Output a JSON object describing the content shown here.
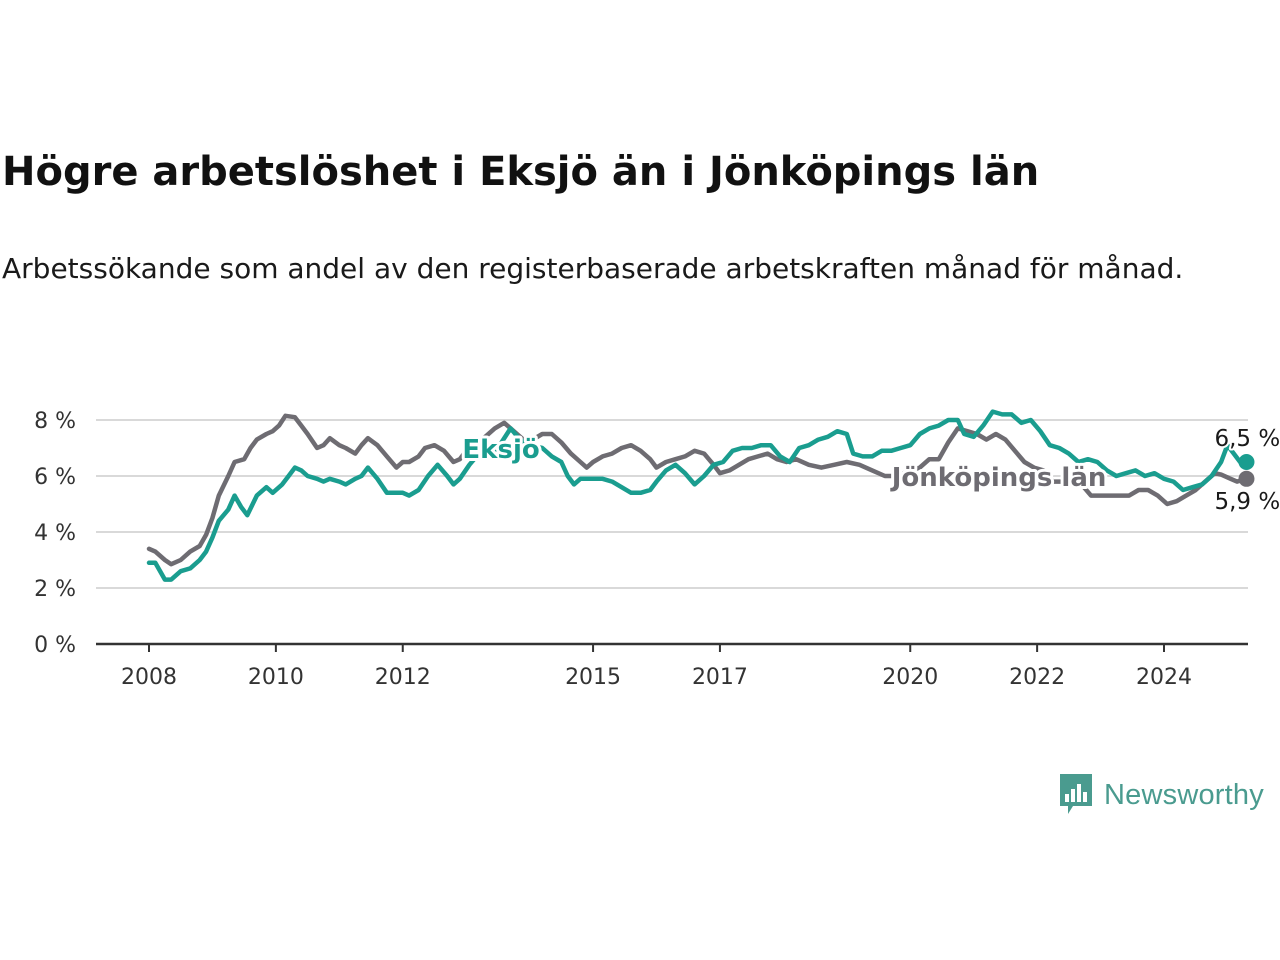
{
  "title": "Högre arbetslöshet i Eksjö än i Jönköpings län",
  "subtitle": "Arbetssökande som andel av den registerbaserade arbetskraften månad för månad.",
  "logo": {
    "text": "Newsworthy",
    "icon": "chart-speech-bubble-icon",
    "color": "#4a9b8f"
  },
  "chart_data": {
    "type": "line",
    "title": "Högre arbetslöshet i Eksjö än i Jönköpings län",
    "xlabel": "",
    "ylabel": "",
    "ylim": [
      0,
      8
    ],
    "xlim": [
      2008,
      2025.5
    ],
    "grid": true,
    "y_ticks": [
      {
        "value": 0,
        "label": "0 %"
      },
      {
        "value": 2,
        "label": "2 %"
      },
      {
        "value": 4,
        "label": "4 %"
      },
      {
        "value": 6,
        "label": "6 %"
      },
      {
        "value": 8,
        "label": "8 %"
      }
    ],
    "x_ticks": [
      {
        "value": 2008,
        "label": "2008"
      },
      {
        "value": 2010,
        "label": "2010"
      },
      {
        "value": 2012,
        "label": "2012"
      },
      {
        "value": 2015,
        "label": "2015"
      },
      {
        "value": 2017,
        "label": "2017"
      },
      {
        "value": 2020,
        "label": "2020"
      },
      {
        "value": 2022,
        "label": "2022"
      },
      {
        "value": 2024,
        "label": "2024"
      }
    ],
    "series": [
      {
        "name": "Jönköpings län",
        "color": "#6e6c72",
        "label": "Jönköpings län",
        "end_label": "5,9 %",
        "points": [
          [
            2008.0,
            3.4
          ],
          [
            2008.1,
            3.3
          ],
          [
            2008.25,
            3.0
          ],
          [
            2008.35,
            2.85
          ],
          [
            2008.5,
            3.0
          ],
          [
            2008.65,
            3.3
          ],
          [
            2008.8,
            3.5
          ],
          [
            2008.9,
            3.9
          ],
          [
            2009.0,
            4.5
          ],
          [
            2009.1,
            5.3
          ],
          [
            2009.25,
            6.0
          ],
          [
            2009.35,
            6.5
          ],
          [
            2009.5,
            6.6
          ],
          [
            2009.6,
            7.0
          ],
          [
            2009.7,
            7.3
          ],
          [
            2009.85,
            7.5
          ],
          [
            2009.95,
            7.6
          ],
          [
            2010.05,
            7.8
          ],
          [
            2010.15,
            8.15
          ],
          [
            2010.3,
            8.1
          ],
          [
            2010.4,
            7.8
          ],
          [
            2010.5,
            7.5
          ],
          [
            2010.65,
            7.0
          ],
          [
            2010.75,
            7.1
          ],
          [
            2010.85,
            7.35
          ],
          [
            2011.0,
            7.1
          ],
          [
            2011.1,
            7.0
          ],
          [
            2011.25,
            6.8
          ],
          [
            2011.35,
            7.1
          ],
          [
            2011.45,
            7.35
          ],
          [
            2011.6,
            7.1
          ],
          [
            2011.75,
            6.7
          ],
          [
            2011.9,
            6.3
          ],
          [
            2012.0,
            6.5
          ],
          [
            2012.1,
            6.5
          ],
          [
            2012.25,
            6.7
          ],
          [
            2012.35,
            7.0
          ],
          [
            2012.5,
            7.1
          ],
          [
            2012.65,
            6.9
          ],
          [
            2012.8,
            6.5
          ],
          [
            2012.9,
            6.6
          ],
          [
            2013.0,
            6.9
          ],
          [
            2013.15,
            7.2
          ],
          [
            2013.3,
            7.4
          ],
          [
            2013.45,
            7.7
          ],
          [
            2013.6,
            7.9
          ],
          [
            2013.75,
            7.6
          ],
          [
            2013.9,
            7.3
          ],
          [
            2014.05,
            7.3
          ],
          [
            2014.2,
            7.5
          ],
          [
            2014.35,
            7.5
          ],
          [
            2014.5,
            7.2
          ],
          [
            2014.65,
            6.8
          ],
          [
            2014.8,
            6.5
          ],
          [
            2014.9,
            6.3
          ],
          [
            2015.0,
            6.5
          ],
          [
            2015.15,
            6.7
          ],
          [
            2015.3,
            6.8
          ],
          [
            2015.45,
            7.0
          ],
          [
            2015.6,
            7.1
          ],
          [
            2015.75,
            6.9
          ],
          [
            2015.9,
            6.6
          ],
          [
            2016.0,
            6.3
          ],
          [
            2016.15,
            6.5
          ],
          [
            2016.3,
            6.6
          ],
          [
            2016.45,
            6.7
          ],
          [
            2016.6,
            6.9
          ],
          [
            2016.75,
            6.8
          ],
          [
            2016.9,
            6.4
          ],
          [
            2017.0,
            6.1
          ],
          [
            2017.15,
            6.2
          ],
          [
            2017.3,
            6.4
          ],
          [
            2017.45,
            6.6
          ],
          [
            2017.6,
            6.7
          ],
          [
            2017.75,
            6.8
          ],
          [
            2017.9,
            6.6
          ],
          [
            2018.05,
            6.5
          ],
          [
            2018.2,
            6.6
          ],
          [
            2018.4,
            6.4
          ],
          [
            2018.6,
            6.3
          ],
          [
            2018.8,
            6.4
          ],
          [
            2019.0,
            6.5
          ],
          [
            2019.2,
            6.4
          ],
          [
            2019.4,
            6.2
          ],
          [
            2019.6,
            6.0
          ],
          [
            2019.8,
            6.0
          ],
          [
            2020.0,
            6.2
          ],
          [
            2020.15,
            6.3
          ],
          [
            2020.3,
            6.6
          ],
          [
            2020.45,
            6.6
          ],
          [
            2020.6,
            7.2
          ],
          [
            2020.75,
            7.7
          ],
          [
            2020.9,
            7.6
          ],
          [
            2021.05,
            7.5
          ],
          [
            2021.2,
            7.3
          ],
          [
            2021.35,
            7.5
          ],
          [
            2021.5,
            7.3
          ],
          [
            2021.65,
            6.9
          ],
          [
            2021.8,
            6.5
          ],
          [
            2021.95,
            6.3
          ],
          [
            2022.1,
            6.2
          ],
          [
            2022.25,
            5.8
          ],
          [
            2022.4,
            5.8
          ],
          [
            2022.55,
            5.8
          ],
          [
            2022.7,
            5.7
          ],
          [
            2022.85,
            5.3
          ],
          [
            2023.0,
            5.3
          ],
          [
            2023.15,
            5.3
          ],
          [
            2023.3,
            5.3
          ],
          [
            2023.45,
            5.3
          ],
          [
            2023.6,
            5.5
          ],
          [
            2023.75,
            5.5
          ],
          [
            2023.9,
            5.3
          ],
          [
            2024.05,
            5.0
          ],
          [
            2024.2,
            5.1
          ],
          [
            2024.35,
            5.3
          ],
          [
            2024.5,
            5.5
          ],
          [
            2024.65,
            5.8
          ],
          [
            2024.8,
            6.1
          ],
          [
            2024.9,
            6.05
          ],
          [
            2025.05,
            5.9
          ],
          [
            2025.15,
            5.8
          ],
          [
            2025.3,
            5.9
          ]
        ]
      },
      {
        "name": "Eksjö",
        "color": "#1a9d8f",
        "label": "Eksjö",
        "end_label": "6,5 %",
        "points": [
          [
            2008.0,
            2.9
          ],
          [
            2008.1,
            2.9
          ],
          [
            2008.25,
            2.3
          ],
          [
            2008.35,
            2.3
          ],
          [
            2008.5,
            2.6
          ],
          [
            2008.65,
            2.7
          ],
          [
            2008.8,
            3.0
          ],
          [
            2008.9,
            3.3
          ],
          [
            2009.0,
            3.8
          ],
          [
            2009.1,
            4.4
          ],
          [
            2009.25,
            4.8
          ],
          [
            2009.35,
            5.3
          ],
          [
            2009.45,
            4.9
          ],
          [
            2009.55,
            4.6
          ],
          [
            2009.7,
            5.3
          ],
          [
            2009.85,
            5.6
          ],
          [
            2009.95,
            5.4
          ],
          [
            2010.1,
            5.7
          ],
          [
            2010.2,
            6.0
          ],
          [
            2010.3,
            6.3
          ],
          [
            2010.4,
            6.2
          ],
          [
            2010.5,
            6.0
          ],
          [
            2010.65,
            5.9
          ],
          [
            2010.75,
            5.8
          ],
          [
            2010.85,
            5.9
          ],
          [
            2011.0,
            5.8
          ],
          [
            2011.1,
            5.7
          ],
          [
            2011.25,
            5.9
          ],
          [
            2011.35,
            6.0
          ],
          [
            2011.45,
            6.3
          ],
          [
            2011.6,
            5.9
          ],
          [
            2011.75,
            5.4
          ],
          [
            2011.9,
            5.4
          ],
          [
            2012.0,
            5.4
          ],
          [
            2012.1,
            5.3
          ],
          [
            2012.25,
            5.5
          ],
          [
            2012.4,
            6.0
          ],
          [
            2012.55,
            6.4
          ],
          [
            2012.7,
            6.0
          ],
          [
            2012.8,
            5.7
          ],
          [
            2012.9,
            5.9
          ],
          [
            2013.05,
            6.4
          ],
          [
            2013.2,
            6.8
          ],
          [
            2013.35,
            6.8
          ],
          [
            2013.5,
            7.0
          ],
          [
            2013.7,
            7.7
          ],
          [
            2013.85,
            7.3
          ],
          [
            2014.0,
            7.1
          ],
          [
            2014.2,
            7.0
          ],
          [
            2014.35,
            6.7
          ],
          [
            2014.5,
            6.5
          ],
          [
            2014.6,
            6.0
          ],
          [
            2014.7,
            5.7
          ],
          [
            2014.8,
            5.9
          ],
          [
            2015.0,
            5.9
          ],
          [
            2015.15,
            5.9
          ],
          [
            2015.3,
            5.8
          ],
          [
            2015.45,
            5.6
          ],
          [
            2015.6,
            5.4
          ],
          [
            2015.75,
            5.4
          ],
          [
            2015.9,
            5.5
          ],
          [
            2016.0,
            5.8
          ],
          [
            2016.15,
            6.2
          ],
          [
            2016.3,
            6.4
          ],
          [
            2016.45,
            6.1
          ],
          [
            2016.6,
            5.7
          ],
          [
            2016.75,
            6.0
          ],
          [
            2016.9,
            6.4
          ],
          [
            2017.05,
            6.5
          ],
          [
            2017.2,
            6.9
          ],
          [
            2017.35,
            7.0
          ],
          [
            2017.5,
            7.0
          ],
          [
            2017.65,
            7.1
          ],
          [
            2017.8,
            7.1
          ],
          [
            2017.95,
            6.7
          ],
          [
            2018.1,
            6.5
          ],
          [
            2018.25,
            7.0
          ],
          [
            2018.4,
            7.1
          ],
          [
            2018.55,
            7.3
          ],
          [
            2018.7,
            7.4
          ],
          [
            2018.85,
            7.6
          ],
          [
            2019.0,
            7.5
          ],
          [
            2019.1,
            6.8
          ],
          [
            2019.25,
            6.7
          ],
          [
            2019.4,
            6.7
          ],
          [
            2019.55,
            6.9
          ],
          [
            2019.7,
            6.9
          ],
          [
            2019.85,
            7.0
          ],
          [
            2020.0,
            7.1
          ],
          [
            2020.15,
            7.5
          ],
          [
            2020.3,
            7.7
          ],
          [
            2020.45,
            7.8
          ],
          [
            2020.6,
            8.0
          ],
          [
            2020.75,
            8.0
          ],
          [
            2020.85,
            7.5
          ],
          [
            2021.0,
            7.4
          ],
          [
            2021.15,
            7.8
          ],
          [
            2021.3,
            8.3
          ],
          [
            2021.45,
            8.2
          ],
          [
            2021.6,
            8.2
          ],
          [
            2021.75,
            7.9
          ],
          [
            2021.9,
            8.0
          ],
          [
            2022.05,
            7.6
          ],
          [
            2022.2,
            7.1
          ],
          [
            2022.35,
            7.0
          ],
          [
            2022.5,
            6.8
          ],
          [
            2022.65,
            6.5
          ],
          [
            2022.8,
            6.6
          ],
          [
            2022.95,
            6.5
          ],
          [
            2023.1,
            6.2
          ],
          [
            2023.25,
            6.0
          ],
          [
            2023.4,
            6.1
          ],
          [
            2023.55,
            6.2
          ],
          [
            2023.7,
            6.0
          ],
          [
            2023.85,
            6.1
          ],
          [
            2024.0,
            5.9
          ],
          [
            2024.15,
            5.8
          ],
          [
            2024.3,
            5.5
          ],
          [
            2024.45,
            5.6
          ],
          [
            2024.6,
            5.7
          ],
          [
            2024.75,
            6.0
          ],
          [
            2024.9,
            6.5
          ],
          [
            2025.0,
            7.1
          ],
          [
            2025.1,
            6.8
          ],
          [
            2025.2,
            6.5
          ],
          [
            2025.3,
            6.5
          ]
        ]
      }
    ]
  }
}
